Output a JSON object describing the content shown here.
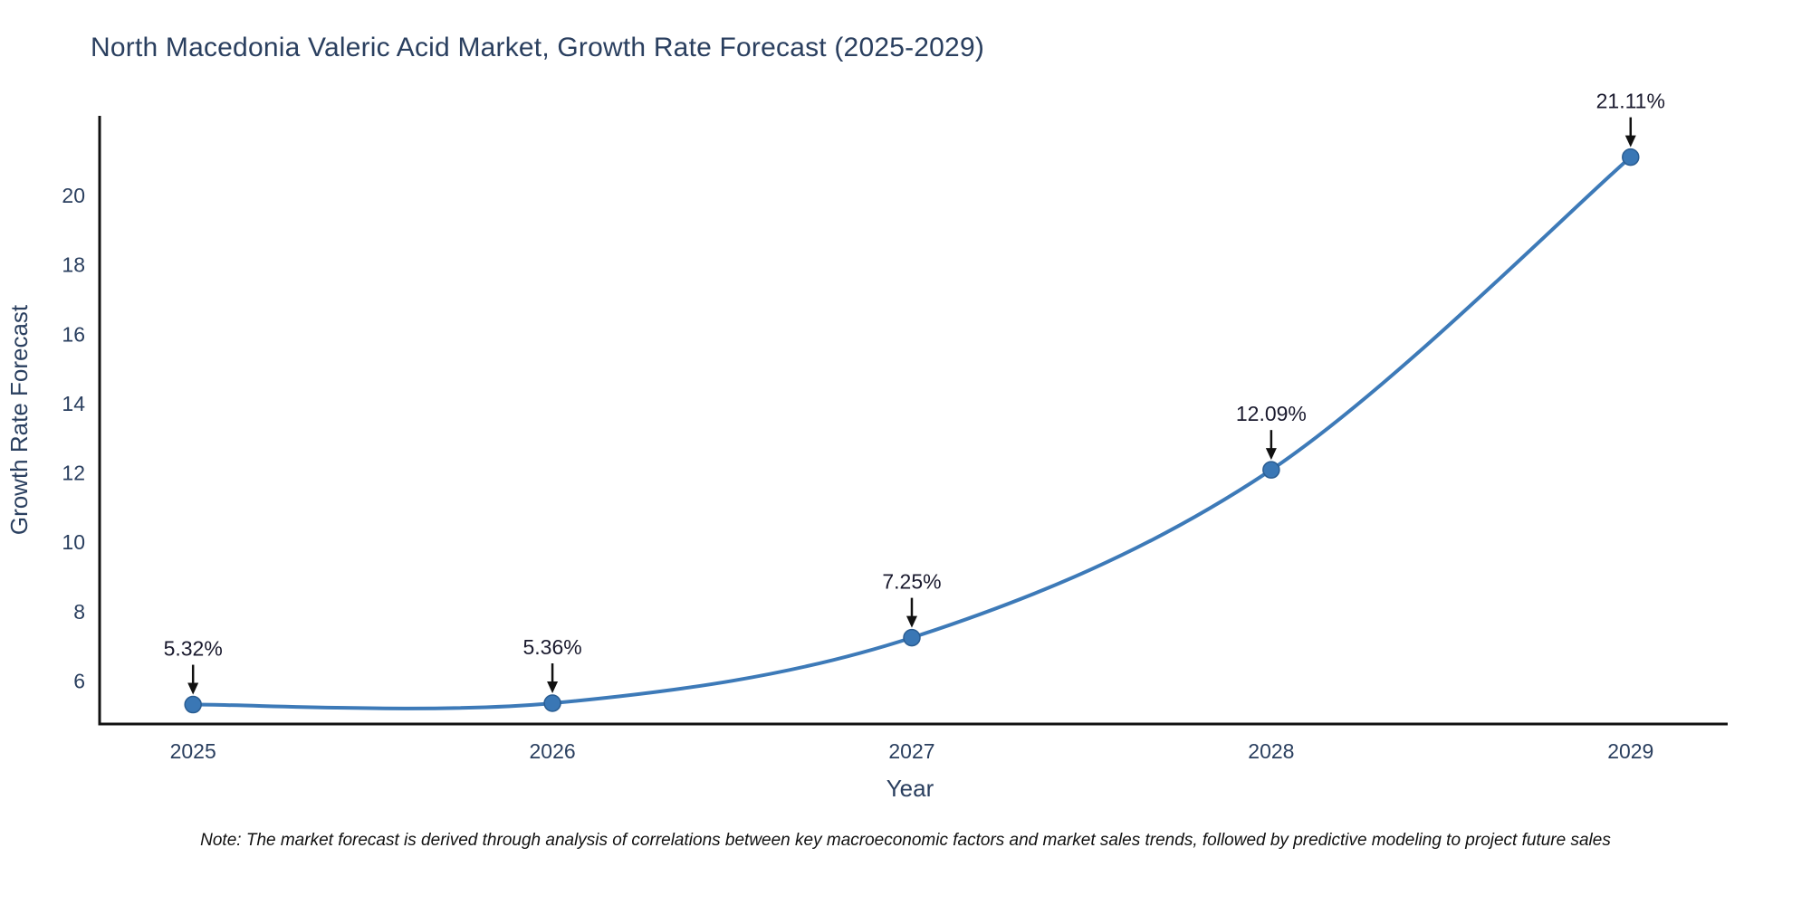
{
  "chart": {
    "title": "North Macedonia Valeric Acid Market, Growth Rate Forecast (2025-2029)",
    "note": "Note: The market forecast is derived through analysis of correlations between key macroeconomic factors and market sales trends, followed by predictive modeling to project future sales"
  },
  "chart_data": {
    "type": "line",
    "title": "North Macedonia Valeric Acid Market, Growth Rate Forecast (2025-2029)",
    "xlabel": "Year",
    "ylabel": "Growth Rate Forecast",
    "categories": [
      2025,
      2026,
      2027,
      2028,
      2029
    ],
    "values": [
      5.32,
      5.36,
      7.25,
      12.09,
      21.11
    ],
    "point_labels": [
      "5.32%",
      "5.36%",
      "7.25%",
      "12.09%",
      "21.11%"
    ],
    "yticks": [
      6,
      8,
      10,
      12,
      14,
      16,
      18,
      20
    ],
    "ylim": [
      4.76,
      22.3
    ],
    "xlim": [
      2024.74,
      2029.25
    ],
    "grid": false,
    "legend": "none",
    "line_color": "#3d7ab8",
    "marker_color": "#3a77b5",
    "marker_edge_color": "#2a5d92",
    "axis_color": "#111111",
    "tick_color": "#2a3f5f",
    "annotation_color": "#1a1a2e"
  }
}
